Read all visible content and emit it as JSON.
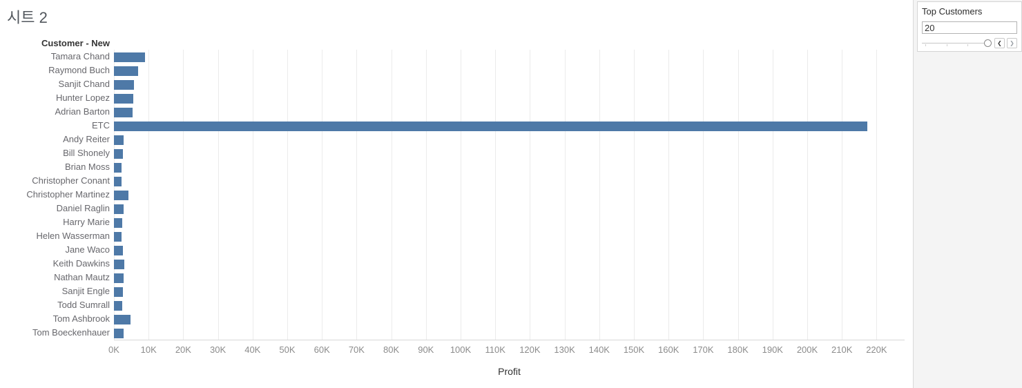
{
  "sheet_title": "시트 2",
  "chart_data": {
    "type": "bar",
    "orientation": "horizontal",
    "row_header": "Customer - New",
    "xlabel": "Profit",
    "xlim": [
      0,
      220000
    ],
    "tick_step": 10000,
    "x_tick_labels": [
      "0K",
      "10K",
      "20K",
      "30K",
      "40K",
      "50K",
      "60K",
      "70K",
      "80K",
      "90K",
      "100K",
      "110K",
      "120K",
      "130K",
      "140K",
      "150K",
      "160K",
      "170K",
      "180K",
      "190K",
      "200K",
      "210K",
      "220K"
    ],
    "grid": "vertical gridlines every 10K, light gray",
    "legend": "none",
    "bar_color": "#4e79a7",
    "categories": [
      "Tamara Chand",
      "Raymond Buch",
      "Sanjit Chand",
      "Hunter Lopez",
      "Adrian Barton",
      "ETC",
      "Andy Reiter",
      "Bill Shonely",
      "Brian Moss",
      "Christopher Conant",
      "Christopher Martinez",
      "Daniel Raglin",
      "Harry Marie",
      "Helen Wasserman",
      "Jane Waco",
      "Keith Dawkins",
      "Nathan Mautz",
      "Sanjit Engle",
      "Todd Sumrall",
      "Tom Ashbrook",
      "Tom Boeckenhauer"
    ],
    "values": [
      8981,
      6976,
      5757,
      5622,
      5445,
      217400,
      2885,
      2616,
      2250,
      2177,
      4120,
      2869,
      2438,
      2150,
      2611,
      3038,
      2752,
      2651,
      2372,
      4704,
      2798
    ]
  },
  "param_panel": {
    "title": "Top Customers",
    "input_value": "20",
    "slider": {
      "position_pct": 95
    },
    "stepper": {
      "decrement": "❮",
      "increment": "❯"
    }
  }
}
